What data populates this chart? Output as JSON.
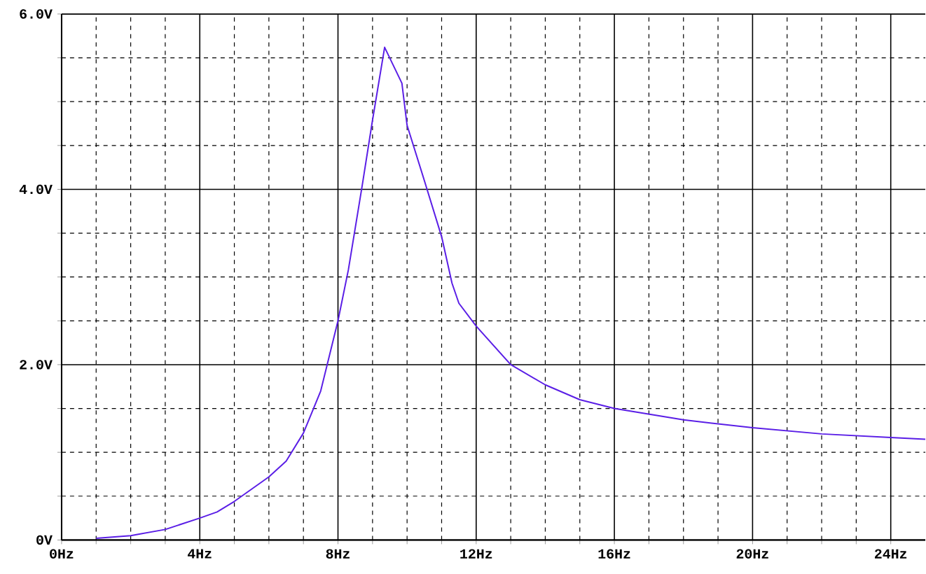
{
  "chart_data": {
    "type": "line",
    "x": [
      1,
      2,
      3,
      4,
      4.5,
      5,
      6,
      6.5,
      7,
      7.5,
      8,
      8.3,
      8.7,
      9,
      9.35,
      9.85,
      10,
      10.5,
      11,
      11.3,
      11.5,
      12,
      13,
      14,
      15,
      16,
      18,
      20,
      22,
      24,
      25
    ],
    "series": [
      {
        "color": "#5a1ee6",
        "values": [
          0.02,
          0.05,
          0.12,
          0.25,
          0.32,
          0.44,
          0.72,
          0.9,
          1.22,
          1.7,
          2.5,
          3.08,
          4.04,
          4.79,
          5.62,
          5.21,
          4.73,
          4.1,
          3.46,
          2.93,
          2.7,
          2.44,
          2.0,
          1.77,
          1.6,
          1.5,
          1.37,
          1.28,
          1.21,
          1.17,
          1.15
        ]
      }
    ],
    "xlim": [
      0,
      25
    ],
    "ylim": [
      0,
      6
    ],
    "xticks": [
      {
        "value": 0,
        "label": "0Hz"
      },
      {
        "value": 1,
        "label": null
      },
      {
        "value": 2,
        "label": null
      },
      {
        "value": 3,
        "label": null
      },
      {
        "value": 4,
        "label": "4Hz"
      },
      {
        "value": 5,
        "label": null
      },
      {
        "value": 6,
        "label": null
      },
      {
        "value": 7,
        "label": null
      },
      {
        "value": 8,
        "label": "8Hz"
      },
      {
        "value": 9,
        "label": null
      },
      {
        "value": 10,
        "label": null
      },
      {
        "value": 11,
        "label": null
      },
      {
        "value": 12,
        "label": "12Hz"
      },
      {
        "value": 13,
        "label": null
      },
      {
        "value": 14,
        "label": null
      },
      {
        "value": 15,
        "label": null
      },
      {
        "value": 16,
        "label": "16Hz"
      },
      {
        "value": 17,
        "label": null
      },
      {
        "value": 18,
        "label": null
      },
      {
        "value": 19,
        "label": null
      },
      {
        "value": 20,
        "label": "20Hz"
      },
      {
        "value": 21,
        "label": null
      },
      {
        "value": 22,
        "label": null
      },
      {
        "value": 23,
        "label": null
      },
      {
        "value": 24,
        "label": "24Hz"
      }
    ],
    "yticks": [
      {
        "value": 0,
        "label": "0V"
      },
      {
        "value": 0.5,
        "label": null
      },
      {
        "value": 1,
        "label": null
      },
      {
        "value": 1.5,
        "label": null
      },
      {
        "value": 2,
        "label": "2.0V"
      },
      {
        "value": 2.5,
        "label": null
      },
      {
        "value": 3,
        "label": null
      },
      {
        "value": 3.5,
        "label": null
      },
      {
        "value": 4,
        "label": "4.0V"
      },
      {
        "value": 4.5,
        "label": null
      },
      {
        "value": 5,
        "label": null
      },
      {
        "value": 5.5,
        "label": null
      },
      {
        "value": 6,
        "label": "6.0V"
      }
    ],
    "grid": true,
    "marker": "none",
    "line_style": "solid"
  }
}
